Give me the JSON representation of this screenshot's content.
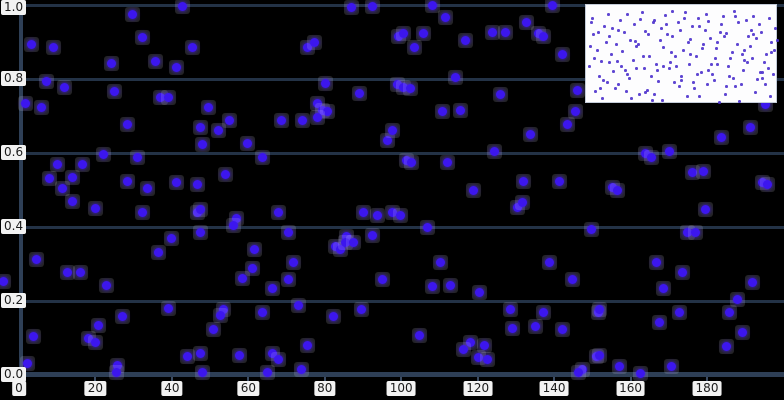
{
  "chart_data": {
    "type": "scatter",
    "title": "",
    "xlabel": "",
    "ylabel": "",
    "xlim": [
      0,
      200
    ],
    "ylim": [
      0.0,
      1.0
    ],
    "grid": "horizontal",
    "legend": "none",
    "background_color": "#000000",
    "gridline_color": "#233246",
    "axis_color": "#2e3f56",
    "marker_color": "#3c16ee",
    "tick_label_bg": "#f2f2f2",
    "tick_label_color": "#1a1a1a",
    "x_ticks": [
      0,
      20,
      40,
      60,
      80,
      100,
      120,
      140,
      160,
      180
    ],
    "y_ticks": [
      "0.0",
      "0.2",
      "0.4",
      "0.6",
      "0.8",
      "1.0"
    ],
    "points": [
      [
        29.8,
        0.973
      ],
      [
        42.9,
        0.995
      ],
      [
        32.2,
        0.911
      ],
      [
        45.3,
        0.886
      ],
      [
        3.4,
        0.892
      ],
      [
        8.9,
        0.884
      ],
      [
        24.3,
        0.843
      ],
      [
        35.6,
        0.846
      ],
      [
        41.3,
        0.83
      ],
      [
        7.3,
        0.792
      ],
      [
        12.0,
        0.776
      ],
      [
        25.1,
        0.765
      ],
      [
        36.9,
        0.751
      ],
      [
        39.0,
        0.751
      ],
      [
        1.6,
        0.735
      ],
      [
        6.0,
        0.724
      ],
      [
        28.3,
        0.676
      ],
      [
        22.0,
        0.595
      ],
      [
        31.1,
        0.589
      ],
      [
        10.2,
        0.568
      ],
      [
        16.7,
        0.568
      ],
      [
        8.1,
        0.532
      ],
      [
        14.1,
        0.535
      ],
      [
        11.3,
        0.505
      ],
      [
        28.5,
        0.522
      ],
      [
        33.5,
        0.505
      ],
      [
        41.3,
        0.519
      ],
      [
        46.6,
        0.516
      ],
      [
        87.1,
        0.992
      ],
      [
        92.4,
        0.995
      ],
      [
        75.4,
        0.886
      ],
      [
        77.4,
        0.9
      ],
      [
        99.2,
        0.914
      ],
      [
        80.1,
        0.789
      ],
      [
        89.2,
        0.762
      ],
      [
        98.9,
        0.784
      ],
      [
        49.5,
        0.724
      ],
      [
        55.2,
        0.689
      ],
      [
        52.1,
        0.662
      ],
      [
        47.4,
        0.67
      ],
      [
        78.2,
        0.735
      ],
      [
        79.3,
        0.716
      ],
      [
        80.6,
        0.711
      ],
      [
        78.2,
        0.695
      ],
      [
        68.8,
        0.689
      ],
      [
        74.3,
        0.689
      ],
      [
        59.9,
        0.627
      ],
      [
        48.1,
        0.622
      ],
      [
        96.3,
        0.635
      ],
      [
        97.6,
        0.662
      ],
      [
        63.6,
        0.589
      ],
      [
        53.9,
        0.541
      ],
      [
        108.1,
        0.998
      ],
      [
        139.7,
        0.998
      ],
      [
        111.5,
        0.965
      ],
      [
        132.9,
        0.954
      ],
      [
        100.5,
        0.924
      ],
      [
        105.7,
        0.924
      ],
      [
        124.0,
        0.927
      ],
      [
        127.2,
        0.927
      ],
      [
        135.8,
        0.924
      ],
      [
        137.1,
        0.914
      ],
      [
        116.7,
        0.905
      ],
      [
        103.6,
        0.884
      ],
      [
        142.3,
        0.865
      ],
      [
        114.1,
        0.805
      ],
      [
        100.7,
        0.778
      ],
      [
        102.3,
        0.773
      ],
      [
        125.9,
        0.757
      ],
      [
        146.0,
        0.77
      ],
      [
        110.9,
        0.711
      ],
      [
        115.4,
        0.716
      ],
      [
        145.5,
        0.711
      ],
      [
        143.6,
        0.676
      ],
      [
        133.7,
        0.649
      ],
      [
        124.5,
        0.603
      ],
      [
        101.5,
        0.581
      ],
      [
        102.8,
        0.573
      ],
      [
        112.0,
        0.573
      ],
      [
        131.9,
        0.522
      ],
      [
        141.5,
        0.522
      ],
      [
        118.8,
        0.5
      ],
      [
        195.2,
        0.73
      ],
      [
        191.3,
        0.67
      ],
      [
        183.9,
        0.643
      ],
      [
        163.8,
        0.6
      ],
      [
        165.6,
        0.589
      ],
      [
        170.3,
        0.603
      ],
      [
        176.3,
        0.546
      ],
      [
        179.0,
        0.549
      ],
      [
        155.4,
        0.508
      ],
      [
        156.7,
        0.5
      ],
      [
        194.4,
        0.519
      ],
      [
        195.7,
        0.514
      ],
      [
        14.1,
        0.468
      ],
      [
        19.9,
        0.451
      ],
      [
        32.4,
        0.438
      ],
      [
        46.6,
        0.438
      ],
      [
        40.0,
        0.37
      ],
      [
        36.4,
        0.33
      ],
      [
        4.7,
        0.311
      ],
      [
        12.8,
        0.278
      ],
      [
        16.0,
        0.278
      ],
      [
        23.0,
        0.243
      ],
      [
        -4.0,
        0.254
      ],
      [
        39.0,
        0.181
      ],
      [
        27.0,
        0.157
      ],
      [
        20.7,
        0.135
      ],
      [
        3.7,
        0.103
      ],
      [
        18.1,
        0.1
      ],
      [
        19.9,
        0.089
      ],
      [
        2.1,
        0.032
      ],
      [
        25.9,
        0.027
      ],
      [
        44.2,
        0.049
      ],
      [
        25.6,
        0.008
      ],
      [
        48.1,
        0.008
      ],
      [
        47.4,
        0.446
      ],
      [
        57.0,
        0.424
      ],
      [
        56.0,
        0.405
      ],
      [
        67.8,
        0.438
      ],
      [
        90.0,
        0.438
      ],
      [
        93.7,
        0.432
      ],
      [
        97.6,
        0.438
      ],
      [
        47.4,
        0.384
      ],
      [
        70.4,
        0.384
      ],
      [
        85.8,
        0.373
      ],
      [
        92.6,
        0.378
      ],
      [
        82.7,
        0.346
      ],
      [
        84.0,
        0.338
      ],
      [
        85.3,
        0.359
      ],
      [
        87.4,
        0.357
      ],
      [
        61.7,
        0.338
      ],
      [
        71.7,
        0.305
      ],
      [
        61.0,
        0.289
      ],
      [
        58.6,
        0.262
      ],
      [
        70.4,
        0.257
      ],
      [
        66.2,
        0.235
      ],
      [
        95.0,
        0.257
      ],
      [
        73.0,
        0.189
      ],
      [
        53.4,
        0.176
      ],
      [
        52.6,
        0.162
      ],
      [
        63.8,
        0.17
      ],
      [
        82.2,
        0.157
      ],
      [
        89.7,
        0.176
      ],
      [
        50.8,
        0.122
      ],
      [
        75.6,
        0.081
      ],
      [
        57.8,
        0.054
      ],
      [
        66.2,
        0.059
      ],
      [
        67.8,
        0.041
      ],
      [
        47.4,
        0.059
      ],
      [
        65.1,
        0.008
      ],
      [
        74.0,
        0.014
      ],
      [
        130.3,
        0.454
      ],
      [
        131.6,
        0.465
      ],
      [
        99.7,
        0.432
      ],
      [
        107.0,
        0.4
      ],
      [
        149.9,
        0.392
      ],
      [
        110.2,
        0.303
      ],
      [
        138.9,
        0.305
      ],
      [
        144.9,
        0.257
      ],
      [
        108.3,
        0.238
      ],
      [
        112.8,
        0.243
      ],
      [
        120.6,
        0.222
      ],
      [
        128.5,
        0.176
      ],
      [
        137.1,
        0.168
      ],
      [
        129.0,
        0.127
      ],
      [
        135.0,
        0.13
      ],
      [
        142.1,
        0.122
      ],
      [
        151.5,
        0.168
      ],
      [
        104.9,
        0.108
      ],
      [
        118.0,
        0.089
      ],
      [
        116.2,
        0.068
      ],
      [
        121.9,
        0.081
      ],
      [
        120.1,
        0.046
      ],
      [
        122.7,
        0.041
      ],
      [
        147.3,
        0.014
      ],
      [
        151.2,
        0.049
      ],
      [
        146.5,
        0.008
      ],
      [
        179.5,
        0.446
      ],
      [
        175.0,
        0.384
      ],
      [
        176.9,
        0.386
      ],
      [
        166.9,
        0.303
      ],
      [
        173.7,
        0.276
      ],
      [
        168.5,
        0.235
      ],
      [
        191.8,
        0.249
      ],
      [
        188.1,
        0.203
      ],
      [
        186.0,
        0.168
      ],
      [
        152.0,
        0.176
      ],
      [
        172.9,
        0.168
      ],
      [
        167.7,
        0.143
      ],
      [
        189.4,
        0.114
      ],
      [
        185.2,
        0.076
      ],
      [
        152.0,
        0.054
      ],
      [
        157.2,
        0.022
      ],
      [
        170.8,
        0.022
      ],
      [
        162.5,
        0.005
      ]
    ],
    "inset": {
      "position": "top-right",
      "background": "#fdfdfe",
      "border_color": "#c3cbd8",
      "marker_color": "#4c31cd",
      "points": [
        [
          5,
          12
        ],
        [
          14,
          55
        ],
        [
          22,
          30
        ],
        [
          31,
          78
        ],
        [
          40,
          8
        ],
        [
          49,
          62
        ],
        [
          58,
          25
        ],
        [
          67,
          88
        ],
        [
          76,
          41
        ],
        [
          85,
          5
        ],
        [
          94,
          70
        ],
        [
          103,
          33
        ],
        [
          112,
          90
        ],
        [
          121,
          15
        ],
        [
          130,
          58
        ],
        [
          139,
          27
        ],
        [
          148,
          80
        ],
        [
          157,
          44
        ],
        [
          166,
          10
        ],
        [
          175,
          66
        ],
        [
          184,
          36
        ],
        [
          8,
          85
        ],
        [
          17,
          20
        ],
        [
          26,
          65
        ],
        [
          35,
          45
        ],
        [
          44,
          92
        ],
        [
          53,
          13
        ],
        [
          62,
          50
        ],
        [
          71,
          75
        ],
        [
          80,
          28
        ],
        [
          89,
          60
        ],
        [
          98,
          6
        ],
        [
          107,
          82
        ],
        [
          116,
          38
        ],
        [
          125,
          68
        ],
        [
          134,
          18
        ],
        [
          143,
          52
        ],
        [
          152,
          95
        ],
        [
          161,
          30
        ],
        [
          170,
          73
        ],
        [
          179,
          48
        ],
        [
          188,
          22
        ],
        [
          3,
          40
        ],
        [
          12,
          70
        ],
        [
          21,
          8
        ],
        [
          30,
          55
        ],
        [
          39,
          85
        ],
        [
          48,
          35
        ],
        [
          57,
          62
        ],
        [
          66,
          16
        ],
        [
          75,
          94
        ],
        [
          84,
          46
        ],
        [
          93,
          24
        ],
        [
          102,
          58
        ],
        [
          111,
          12
        ],
        [
          120,
          78
        ],
        [
          129,
          42
        ],
        [
          138,
          88
        ],
        [
          147,
          5
        ],
        [
          156,
          64
        ],
        [
          165,
          52
        ],
        [
          174,
          26
        ],
        [
          183,
          90
        ],
        [
          6,
          28
        ],
        [
          15,
          92
        ],
        [
          24,
          48
        ],
        [
          33,
          14
        ],
        [
          42,
          72
        ],
        [
          51,
          38
        ],
        [
          60,
          84
        ],
        [
          69,
          58
        ],
        [
          78,
          9
        ],
        [
          87,
          76
        ],
        [
          96,
          44
        ],
        [
          105,
          20
        ],
        [
          114,
          66
        ],
        [
          123,
          32
        ],
        [
          132,
          96
        ],
        [
          141,
          60
        ],
        [
          150,
          38
        ],
        [
          159,
          14
        ],
        [
          168,
          86
        ],
        [
          177,
          56
        ],
        [
          186,
          68
        ],
        [
          10,
          44
        ],
        [
          19,
          36
        ],
        [
          28,
          82
        ],
        [
          37,
          26
        ],
        [
          46,
          54
        ],
        [
          55,
          6
        ],
        [
          64,
          70
        ],
        [
          73,
          34
        ],
        [
          82,
          62
        ],
        [
          91,
          16
        ],
        [
          100,
          90
        ],
        [
          109,
          50
        ],
        [
          118,
          24
        ],
        [
          127,
          74
        ],
        [
          136,
          10
        ],
        [
          145,
          46
        ],
        [
          154,
          78
        ],
        [
          163,
          40
        ],
        [
          172,
          18
        ],
        [
          181,
          62
        ],
        [
          190,
          34
        ],
        [
          2,
          60
        ],
        [
          11,
          26
        ],
        [
          20,
          76
        ],
        [
          29,
          38
        ],
        [
          38,
          64
        ],
        [
          47,
          18
        ],
        [
          56,
          50
        ],
        [
          65,
          94
        ],
        [
          74,
          22
        ],
        [
          83,
          56
        ],
        [
          92,
          80
        ],
        [
          101,
          36
        ],
        [
          110,
          68
        ],
        [
          119,
          8
        ],
        [
          128,
          52
        ],
        [
          137,
          30
        ],
        [
          146,
          72
        ],
        [
          155,
          48
        ],
        [
          164,
          24
        ],
        [
          173,
          66
        ],
        [
          182,
          12
        ],
        [
          7,
          52
        ],
        [
          16,
          74
        ],
        [
          25,
          22
        ],
        [
          34,
          60
        ],
        [
          43,
          34
        ],
        [
          52,
          88
        ],
        [
          61,
          28
        ],
        [
          70,
          64
        ],
        [
          79,
          18
        ],
        [
          88,
          50
        ],
        [
          97,
          12
        ],
        [
          106,
          76
        ],
        [
          115,
          42
        ],
        [
          124,
          58
        ],
        [
          133,
          26
        ],
        [
          142,
          70
        ],
        [
          151,
          16
        ],
        [
          160,
          56
        ],
        [
          169,
          32
        ],
        [
          178,
          78
        ],
        [
          187,
          44
        ],
        [
          4,
          16
        ],
        [
          13,
          82
        ],
        [
          22,
          56
        ],
        [
          31,
          24
        ],
        [
          40,
          68
        ],
        [
          49,
          40
        ],
        [
          58,
          86
        ],
        [
          67,
          14
        ],
        [
          76,
          60
        ],
        [
          85,
          30
        ],
        [
          94,
          74
        ],
        [
          103,
          48
        ],
        [
          112,
          20
        ],
        [
          121,
          64
        ],
        [
          130,
          36
        ],
        [
          139,
          80
        ],
        [
          148,
          10
        ],
        [
          157,
          54
        ],
        [
          166,
          28
        ],
        [
          175,
          72
        ],
        [
          184,
          46
        ]
      ]
    }
  }
}
